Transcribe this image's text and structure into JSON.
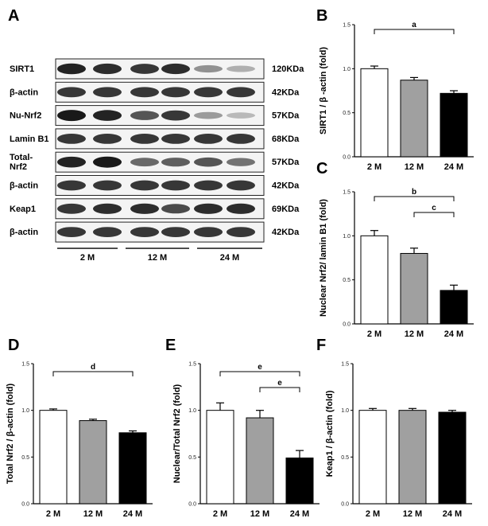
{
  "panel_letters": [
    "A",
    "B",
    "C",
    "D",
    "E",
    "F"
  ],
  "blot": {
    "rows": [
      {
        "label": "SIRT1",
        "size": "120KDa",
        "pairs": [
          [
            0.95,
            0.9
          ],
          [
            0.85,
            0.9
          ],
          [
            0.4,
            0.25
          ]
        ]
      },
      {
        "label": "β-actin",
        "size": "42KDa",
        "pairs": [
          [
            0.85,
            0.85
          ],
          [
            0.85,
            0.85
          ],
          [
            0.85,
            0.85
          ]
        ]
      },
      {
        "label": "Nu-Nrf2",
        "size": "57KDa",
        "pairs": [
          [
            1.0,
            0.95
          ],
          [
            0.7,
            0.85
          ],
          [
            0.35,
            0.2
          ]
        ]
      },
      {
        "label": "Lamin B1",
        "size": "68KDa",
        "pairs": [
          [
            0.85,
            0.85
          ],
          [
            0.85,
            0.85
          ],
          [
            0.85,
            0.85
          ]
        ]
      },
      {
        "label": "Total-\nNrf2",
        "size": "57KDa",
        "pairs": [
          [
            0.95,
            1.0
          ],
          [
            0.6,
            0.65
          ],
          [
            0.7,
            0.55
          ]
        ]
      },
      {
        "label": "β-actin",
        "size": "42KDa",
        "pairs": [
          [
            0.85,
            0.85
          ],
          [
            0.85,
            0.85
          ],
          [
            0.85,
            0.85
          ]
        ]
      },
      {
        "label": "Keap1",
        "size": "69KDa",
        "pairs": [
          [
            0.85,
            0.9
          ],
          [
            0.9,
            0.75
          ],
          [
            0.9,
            0.9
          ]
        ]
      },
      {
        "label": "β-actin",
        "size": "42KDa",
        "pairs": [
          [
            0.85,
            0.85
          ],
          [
            0.85,
            0.85
          ],
          [
            0.85,
            0.85
          ]
        ]
      }
    ],
    "groups": [
      "2 M",
      "12 M",
      "24 M"
    ]
  },
  "chart_data": [
    {
      "panel": "B",
      "type": "bar",
      "categories": [
        "2 M",
        "12 M",
        "24 M"
      ],
      "values": [
        1.0,
        0.87,
        0.72
      ],
      "errors": [
        0.03,
        0.03,
        0.03
      ],
      "ylabel": "SIRT1 / β -actin (fold)",
      "ylim": [
        0,
        1.5
      ],
      "yticks": [
        "0.0",
        "0.5",
        "1.0",
        "1.5"
      ],
      "colors": [
        "#ffffff",
        "#a0a0a0",
        "#000000"
      ],
      "significance": [
        {
          "from": 0,
          "to": 2,
          "label": "a"
        }
      ]
    },
    {
      "panel": "C",
      "type": "bar",
      "categories": [
        "2 M",
        "12 M",
        "24 M"
      ],
      "values": [
        1.0,
        0.8,
        0.38
      ],
      "errors": [
        0.06,
        0.06,
        0.06
      ],
      "ylabel": "Nuclear Nrf2/ lamin B1 (fold)",
      "ylim": [
        0,
        1.5
      ],
      "yticks": [
        "0.0",
        "0.5",
        "1.0",
        "1.5"
      ],
      "colors": [
        "#ffffff",
        "#a0a0a0",
        "#000000"
      ],
      "significance": [
        {
          "from": 0,
          "to": 2,
          "label": "b"
        },
        {
          "from": 1,
          "to": 2,
          "label": "c"
        }
      ]
    },
    {
      "panel": "D",
      "type": "bar",
      "categories": [
        "2 M",
        "12 M",
        "24 M"
      ],
      "values": [
        1.0,
        0.89,
        0.76
      ],
      "errors": [
        0.015,
        0.015,
        0.02
      ],
      "ylabel": "Total Nrf2 / β-actin (fold)",
      "ylim": [
        0,
        1.5
      ],
      "yticks": [
        "0.0",
        "0.5",
        "1.0",
        "1.5"
      ],
      "colors": [
        "#ffffff",
        "#a0a0a0",
        "#000000"
      ],
      "significance": [
        {
          "from": 0,
          "to": 2,
          "label": "d"
        }
      ]
    },
    {
      "panel": "E",
      "type": "bar",
      "categories": [
        "2 M",
        "12 M",
        "24 M"
      ],
      "values": [
        1.0,
        0.92,
        0.49
      ],
      "errors": [
        0.08,
        0.08,
        0.08
      ],
      "ylabel": "Nuclear/Total Nrf2 (fold)",
      "ylim": [
        0,
        1.5
      ],
      "yticks": [
        "0.0",
        "0.5",
        "1.0",
        "1.5"
      ],
      "colors": [
        "#ffffff",
        "#a0a0a0",
        "#000000"
      ],
      "significance": [
        {
          "from": 0,
          "to": 2,
          "label": "e"
        },
        {
          "from": 1,
          "to": 2,
          "label": "e"
        }
      ]
    },
    {
      "panel": "F",
      "type": "bar",
      "categories": [
        "2 M",
        "12 M",
        "24 M"
      ],
      "values": [
        1.0,
        1.0,
        0.98
      ],
      "errors": [
        0.02,
        0.02,
        0.02
      ],
      "ylabel": "Keap1 / β-actin (fold)",
      "ylim": [
        0,
        1.5
      ],
      "yticks": [
        "0.0",
        "0.5",
        "1.0",
        "1.5"
      ],
      "colors": [
        "#ffffff",
        "#a0a0a0",
        "#000000"
      ],
      "significance": []
    }
  ]
}
